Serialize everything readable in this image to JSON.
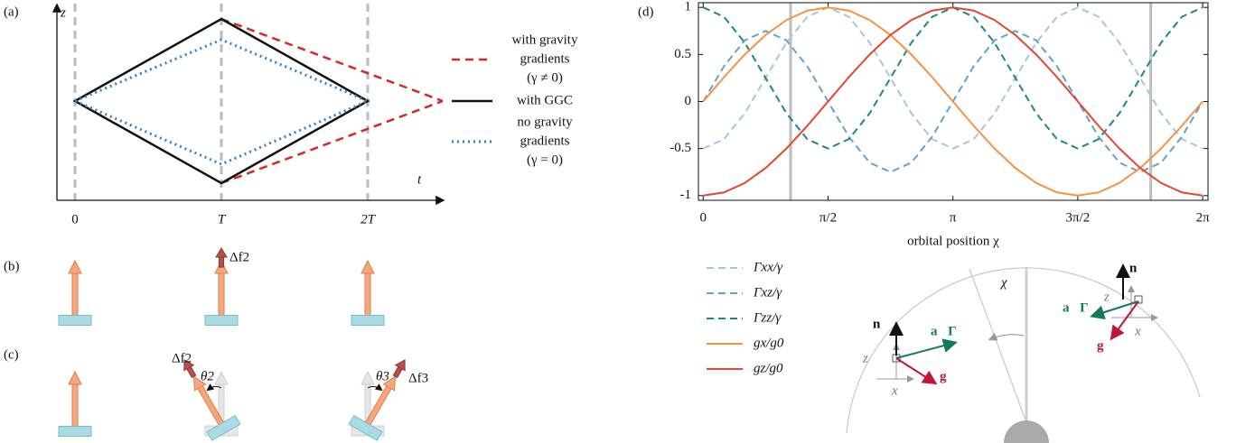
{
  "panel_labels": [
    "(a)",
    "(b)",
    "(c)",
    "(d)"
  ],
  "panel_a": {
    "axis_z": "z",
    "axis_t": "t",
    "ticks": [
      "0",
      "T",
      "2T"
    ],
    "legend": [
      [
        "with gravity",
        "gradients",
        "(γ ≠ 0)"
      ],
      [
        "with GGC"
      ],
      [
        "no gravity",
        "gradients",
        "(γ = 0)"
      ]
    ]
  },
  "panel_b": {
    "label": "Δf2"
  },
  "panel_c": {
    "labels": [
      "Δf2",
      "θ2",
      "θ3",
      "Δf3"
    ]
  },
  "orbit_diagram": {
    "chi": "χ",
    "left_frame": {
      "n": "n⃗",
      "a": "a⃗Γ",
      "g": "g⃗",
      "z": "z",
      "x": "x"
    },
    "right_frame": {
      "n": "n⃗",
      "a": "a⃗Γ",
      "g": "g⃗",
      "z": "z",
      "x": "x"
    }
  },
  "chart_data": {
    "type": "line",
    "xlabel": "orbital position χ",
    "x": [
      0,
      0.2618,
      0.5236,
      0.7854,
      1.0472,
      1.309,
      1.5708,
      1.8326,
      2.0944,
      2.3562,
      2.618,
      2.8798,
      3.1416,
      3.4034,
      3.6652,
      3.927,
      4.1888,
      4.4506,
      4.7124,
      4.9742,
      5.236,
      5.4978,
      5.7596,
      6.0214,
      6.2832
    ],
    "series": [
      {
        "name": "Γxx/γ",
        "color": "#a9c4e2",
        "line_style": "dashed",
        "values": [
          -0.5,
          -0.4,
          -0.125,
          0.25,
          0.625,
          0.9,
          1,
          0.9,
          0.625,
          0.25,
          -0.125,
          -0.4,
          -0.5,
          -0.4,
          -0.125,
          0.25,
          0.625,
          0.9,
          1,
          0.9,
          0.625,
          0.25,
          -0.125,
          -0.4,
          -0.5
        ]
      },
      {
        "name": "Γxz/γ",
        "color": "#62a3cb",
        "line_style": "dashed",
        "values": [
          0,
          0.375,
          0.65,
          0.75,
          0.65,
          0.375,
          0,
          -0.375,
          -0.65,
          -0.75,
          -0.65,
          -0.375,
          0,
          0.375,
          0.65,
          0.75,
          0.65,
          0.375,
          0,
          -0.375,
          -0.65,
          -0.75,
          -0.65,
          -0.375,
          0
        ]
      },
      {
        "name": "Γzz/γ",
        "color": "#1f8585",
        "line_style": "dashed",
        "values": [
          1,
          0.9,
          0.625,
          0.25,
          -0.125,
          -0.4,
          -0.5,
          -0.4,
          -0.125,
          0.25,
          0.625,
          0.9,
          1,
          0.9,
          0.625,
          0.25,
          -0.125,
          -0.4,
          -0.5,
          -0.4,
          -0.125,
          0.25,
          0.625,
          0.9,
          1
        ]
      },
      {
        "name": "gx/g0",
        "color": "#f59440",
        "line_style": "solid",
        "values": [
          0,
          0.259,
          0.5,
          0.707,
          0.866,
          0.966,
          1,
          0.966,
          0.866,
          0.707,
          0.5,
          0.259,
          0,
          -0.259,
          -0.5,
          -0.707,
          -0.866,
          -0.966,
          -1,
          -0.966,
          -0.866,
          -0.707,
          -0.5,
          -0.259,
          0
        ]
      },
      {
        "name": "gz/g0",
        "color": "#e3472c",
        "line_style": "solid",
        "values": [
          -1,
          -0.966,
          -0.866,
          -0.707,
          -0.5,
          -0.259,
          0,
          0.259,
          0.5,
          0.707,
          0.866,
          0.966,
          1,
          0.966,
          0.866,
          0.707,
          0.5,
          0.259,
          0,
          -0.259,
          -0.5,
          -0.707,
          -0.866,
          -0.966,
          -1
        ]
      }
    ],
    "xlim": [
      -0.06,
      6.35
    ],
    "ylim": [
      -1.05,
      1.05
    ],
    "xticks": [
      0,
      {
        "value": 1.5708,
        "label": "π/2"
      },
      {
        "value": 3.1416,
        "label": "π"
      },
      {
        "value": 4.7124,
        "label": "3π/2"
      },
      {
        "value": 6.2832,
        "label": "2π"
      }
    ],
    "yticks": [
      -1,
      -0.5,
      0,
      0.5,
      1
    ],
    "vlines": [
      1.1,
      5.63
    ],
    "grid": false,
    "legend": "below-left"
  }
}
